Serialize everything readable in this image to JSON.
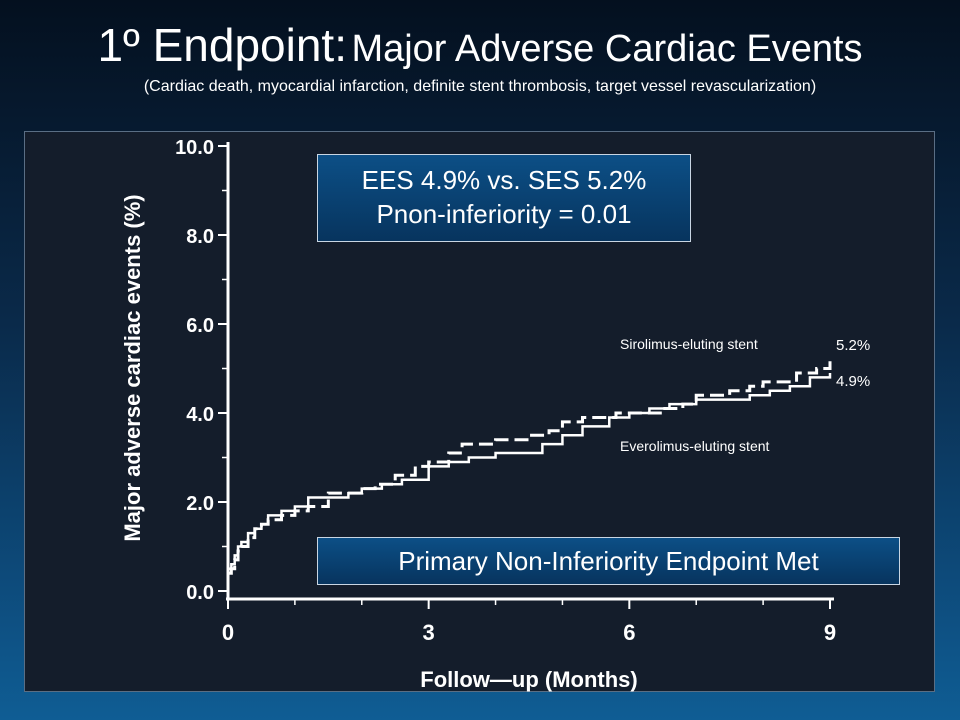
{
  "slide": {
    "title_main": "1º Endpoint:",
    "title_rest": "Major Adverse Cardiac Events",
    "subtitle": "(Cardiac death, myocardial infarction, definite stent thrombosis, target vessel revascularization)"
  },
  "annotations": {
    "box_line1": "EES 4.9% vs. SES 5.2%",
    "box_line2": "Pnon-inferiority = 0.01",
    "primary_endpoint": "Primary Non-Inferiority Endpoint Met",
    "ses_label": "Sirolimus-eluting stent",
    "ees_label": "Everolimus-eluting stent",
    "ses_pct": "5.2%",
    "ees_pct": "4.9%"
  },
  "chart_data": {
    "type": "line",
    "xlabel": "Follow—up (Months)",
    "ylabel": "Major adverse cardiac events (%)",
    "xlim": [
      0,
      9
    ],
    "ylim": [
      0,
      10
    ],
    "xticks": [
      "0",
      "3",
      "6",
      "9"
    ],
    "yticks": [
      "0.0",
      "2.0",
      "4.0",
      "6.0",
      "8.0",
      "10.0"
    ],
    "grid": false,
    "legend": "inline labels",
    "series": [
      {
        "name": "Sirolimus-eluting stent",
        "style": "dashed",
        "end_value": 5.2,
        "x": [
          0,
          0.05,
          0.1,
          0.15,
          0.2,
          0.3,
          0.4,
          0.5,
          0.6,
          0.8,
          1.0,
          1.2,
          1.5,
          1.8,
          2.0,
          2.2,
          2.5,
          2.8,
          3.0,
          3.3,
          3.5,
          4.0,
          4.3,
          4.5,
          4.8,
          5.0,
          5.3,
          5.5,
          5.8,
          6.0,
          6.5,
          6.8,
          7.0,
          7.5,
          7.8,
          8.0,
          8.5,
          8.8,
          9.0
        ],
        "y": [
          0.4,
          0.5,
          0.7,
          0.9,
          1.0,
          1.2,
          1.4,
          1.5,
          1.6,
          1.7,
          1.8,
          1.9,
          2.2,
          2.2,
          2.3,
          2.4,
          2.6,
          2.8,
          2.9,
          3.1,
          3.3,
          3.4,
          3.4,
          3.5,
          3.6,
          3.8,
          3.9,
          3.9,
          4.0,
          4.0,
          4.1,
          4.2,
          4.4,
          4.5,
          4.6,
          4.7,
          4.9,
          5.0,
          5.2
        ]
      },
      {
        "name": "Everolimus-eluting stent",
        "style": "solid",
        "end_value": 4.9,
        "x": [
          0,
          0.05,
          0.1,
          0.15,
          0.2,
          0.3,
          0.4,
          0.5,
          0.6,
          0.8,
          1.0,
          1.2,
          1.5,
          1.8,
          2.0,
          2.3,
          2.6,
          3.0,
          3.3,
          3.6,
          4.0,
          4.3,
          4.7,
          5.0,
          5.3,
          5.7,
          6.0,
          6.3,
          6.6,
          7.0,
          7.4,
          7.8,
          8.1,
          8.4,
          8.7,
          9.0
        ],
        "y": [
          0.5,
          0.6,
          0.8,
          1.0,
          1.1,
          1.3,
          1.4,
          1.5,
          1.7,
          1.8,
          1.9,
          2.1,
          2.1,
          2.2,
          2.3,
          2.4,
          2.5,
          2.8,
          2.9,
          3.0,
          3.1,
          3.1,
          3.3,
          3.5,
          3.7,
          3.9,
          4.0,
          4.1,
          4.2,
          4.3,
          4.3,
          4.4,
          4.5,
          4.6,
          4.8,
          4.9
        ]
      }
    ]
  }
}
